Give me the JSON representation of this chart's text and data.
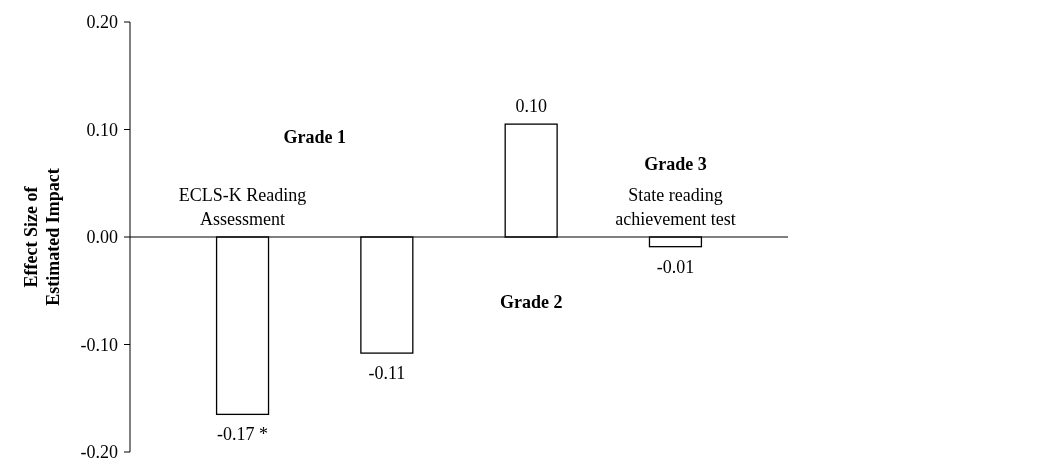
{
  "chart_data": {
    "type": "bar",
    "ylabel": "Effect Size of Estimated Impact",
    "categories": [
      "ECLS-K Reading Assessment",
      null,
      null,
      "State reading achievement test"
    ],
    "values": [
      -0.165,
      -0.108,
      0.105,
      -0.009
    ],
    "value_labels": [
      "-0.17 *",
      "-0.11",
      "0.10",
      "-0.01"
    ],
    "color": "#ffffff",
    "ylim": [
      -0.2,
      0.2
    ],
    "yticks": [
      {
        "value": -0.2,
        "label": "-0.20"
      },
      {
        "value": -0.1,
        "label": "-0.10"
      },
      {
        "value": 0,
        "label": "0.00"
      },
      {
        "value": 0.1,
        "label": "0.10"
      },
      {
        "value": 0.2,
        "label": "0.20"
      }
    ],
    "annotations": [
      "Grade 1",
      "Grade 2",
      "Grade 3"
    ],
    "grid": false
  }
}
